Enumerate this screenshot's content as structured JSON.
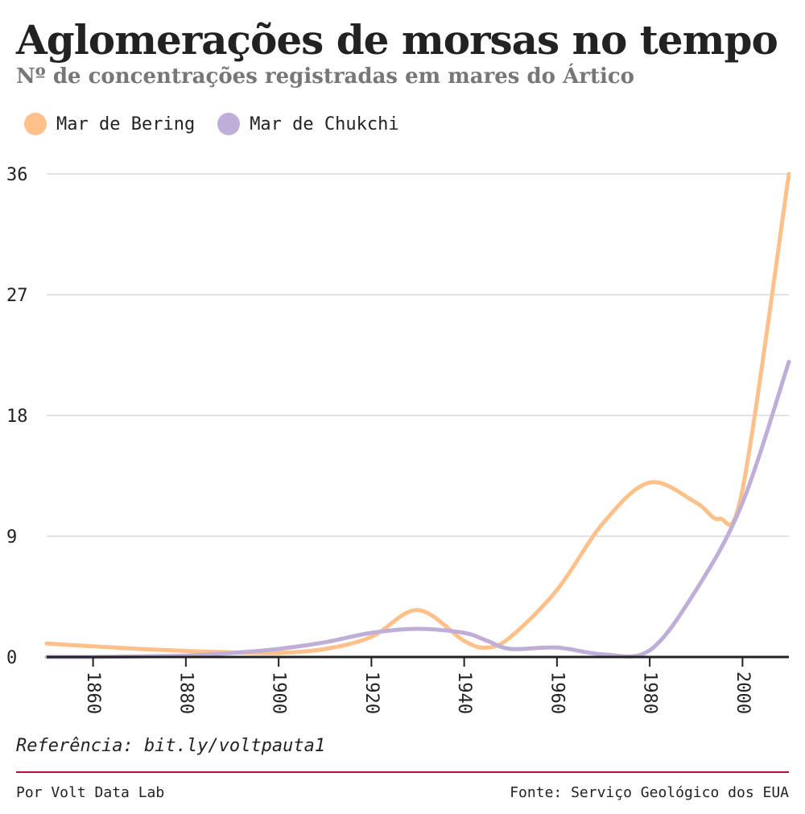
{
  "header": {
    "title": "Aglomerações de morsas no tempo",
    "subtitle": "Nº de concentrações registradas em mares do Ártico"
  },
  "chart_data": {
    "type": "line",
    "title": "Aglomerações de morsas no tempo",
    "subtitle": "Nº de concentrações registradas em mares do Ártico",
    "xlabel": "",
    "ylabel": "",
    "xlim": [
      1850,
      2010
    ],
    "ylim": [
      0,
      36
    ],
    "x_ticks": [
      1860,
      1880,
      1900,
      1920,
      1940,
      1960,
      1980,
      2000
    ],
    "y_ticks": [
      0,
      9,
      18,
      27,
      36
    ],
    "grid": true,
    "legend": "top-left",
    "series": [
      {
        "name": "Mar de Bering",
        "color": "#ffc08a",
        "x": [
          1850,
          1860,
          1870,
          1880,
          1890,
          1900,
          1910,
          1920,
          1930,
          1940,
          1945,
          1950,
          1960,
          1970,
          1980,
          1990,
          1995,
          2000,
          2010
        ],
        "y": [
          1,
          0.8,
          0.6,
          0.45,
          0.35,
          0.3,
          0.6,
          1.5,
          3.5,
          1.2,
          0.7,
          1.5,
          5,
          10,
          13,
          11.5,
          10.3,
          12.5,
          36
        ]
      },
      {
        "name": "Mar de Chukchi",
        "color": "#bfaed7",
        "x": [
          1850,
          1860,
          1870,
          1880,
          1890,
          1900,
          1910,
          1920,
          1930,
          1940,
          1945,
          1950,
          1960,
          1970,
          1980,
          1990,
          2000,
          2010
        ],
        "y": [
          0,
          0,
          0.05,
          0.1,
          0.3,
          0.6,
          1.1,
          1.8,
          2.1,
          1.8,
          1.2,
          0.6,
          0.7,
          0.2,
          0.5,
          5,
          11.5,
          22
        ]
      }
    ]
  },
  "footer": {
    "reference": "Referência: bit.ly/voltpauta1",
    "credit": "Por Volt Data Lab",
    "source": "Fonte: Serviço Geológico dos EUA"
  }
}
